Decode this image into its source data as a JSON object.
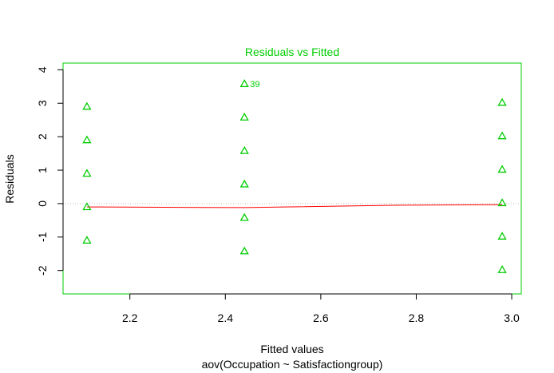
{
  "chart_data": {
    "type": "scatter",
    "title": "Residuals vs Fitted",
    "xlabel": "Fitted values",
    "subtitle": "aov(Occupation ~ Satisfactiongroup)",
    "ylabel": "Residuals",
    "xlim": [
      2.06,
      3.02
    ],
    "ylim": [
      -2.7,
      4.2
    ],
    "x_ticks": [
      "2.2",
      "2.4",
      "2.6",
      "2.8",
      "3.0"
    ],
    "y_ticks": [
      "-2",
      "-1",
      "0",
      "1",
      "2",
      "3",
      "4"
    ],
    "points": [
      {
        "x": 2.11,
        "y": 2.9
      },
      {
        "x": 2.11,
        "y": 1.9
      },
      {
        "x": 2.11,
        "y": 0.9
      },
      {
        "x": 2.11,
        "y": -0.1
      },
      {
        "x": 2.11,
        "y": -1.1
      },
      {
        "x": 2.44,
        "y": 3.58
      },
      {
        "x": 2.44,
        "y": 2.58
      },
      {
        "x": 2.44,
        "y": 1.58
      },
      {
        "x": 2.44,
        "y": 0.58
      },
      {
        "x": 2.44,
        "y": -0.42
      },
      {
        "x": 2.44,
        "y": -1.42
      },
      {
        "x": 2.98,
        "y": 3.02
      },
      {
        "x": 2.98,
        "y": 2.02
      },
      {
        "x": 2.98,
        "y": 1.02
      },
      {
        "x": 2.98,
        "y": 0.02
      },
      {
        "x": 2.98,
        "y": -0.98
      },
      {
        "x": 2.98,
        "y": -1.98
      }
    ],
    "point_labels": [
      {
        "x": 2.44,
        "y": 3.58,
        "text": "39"
      }
    ],
    "smooth_line": [
      {
        "x": 2.11,
        "y": -0.1
      },
      {
        "x": 2.44,
        "y": -0.12
      },
      {
        "x": 2.75,
        "y": -0.05
      },
      {
        "x": 2.98,
        "y": -0.03
      }
    ],
    "colors": {
      "points": "#00cd00",
      "smooth": "#ff0000",
      "box": "#00cd00",
      "title": "#00cd00",
      "zero_line": "#bebebe"
    }
  }
}
